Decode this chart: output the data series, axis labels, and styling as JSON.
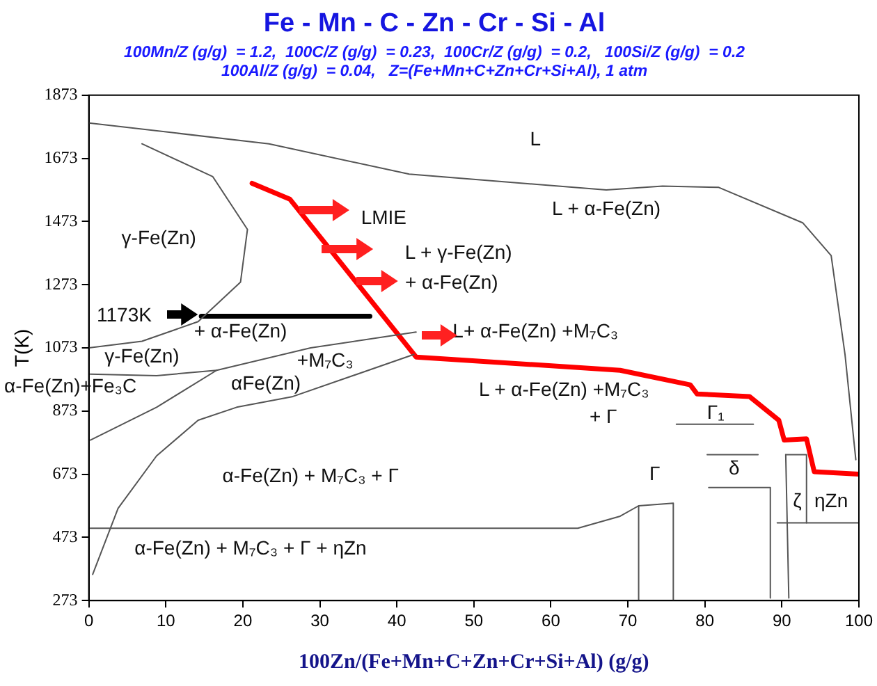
{
  "chart_data": {
    "type": "line",
    "title": "Fe - Mn - C - Zn - Cr - Si - Al",
    "subtitle": "100Mn/Z (g/g)  = 1.2,  100C/Z (g/g)  = 0.23,  100Cr/Z (g/g)  = 0.2,   100Si/Z (g/g)  = 0.2\n100Al/Z (g/g)  = 0.04,   Z=(Fe+Mn+C+Zn+Cr+Si+Al), 1 atm",
    "xlabel": "100Zn/(Fe+Mn+C+Zn+Cr+Si+Al) (g/g)",
    "ylabel": "T(K)",
    "xlim": [
      0,
      100
    ],
    "xticks": [
      0,
      10,
      20,
      30,
      40,
      50,
      60,
      70,
      80,
      90,
      100
    ],
    "ylim": [
      273,
      1873
    ],
    "yticks": [
      273,
      473,
      673,
      873,
      1073,
      1273,
      1473,
      1673,
      1873
    ],
    "grid": false,
    "legend": false,
    "marker": "none",
    "line_style": "solid",
    "series": [
      {
        "color": "#555555",
        "x": [
          0,
          23.4,
          41.6,
          67.2,
          74.5,
          81.8,
          92.7,
          96.4,
          98.2,
          99.6
        ],
        "values": [
          1785,
          1719,
          1623,
          1573,
          1585,
          1581,
          1469,
          1365,
          1052,
          719
        ]
      },
      {
        "color": "#555555",
        "x": [
          6.9,
          16.1,
          20.6,
          19.7,
          14.2,
          6.9,
          0
        ],
        "values": [
          1719,
          1615,
          1448,
          1281,
          1156,
          1094,
          1073
        ]
      },
      {
        "color": "#555555",
        "x": [
          0.5,
          3.8,
          8.8,
          14.2,
          19.2,
          26.5,
          42.2
        ],
        "values": [
          356,
          565,
          731,
          844,
          885,
          919,
          1052
        ]
      },
      {
        "color": "#555555",
        "x": [
          0.2,
          63.5,
          69,
          71.4,
          71.4
        ],
        "values": [
          502,
          502,
          540,
          573,
          273
        ]
      },
      {
        "color": "#555555",
        "x": [
          0.2,
          8.8,
          16.6,
          28.8,
          42.5
        ],
        "values": [
          781,
          885,
          1002,
          1073,
          1123
        ]
      },
      {
        "color": "#555555",
        "x": [
          0.2,
          8.8,
          16.6
        ],
        "values": [
          990,
          985,
          1002
        ]
      },
      {
        "color": "#555555",
        "x": [
          71.4,
          75.9,
          75.9
        ],
        "values": [
          573,
          581,
          273
        ]
      },
      {
        "color": "#555555",
        "x": [
          76.3,
          86.3
        ],
        "values": [
          831,
          831
        ]
      },
      {
        "color": "#555555",
        "x": [
          80.3,
          86.9
        ],
        "values": [
          735,
          735
        ]
      },
      {
        "color": "#555555",
        "x": [
          80.5,
          88.5,
          88.5
        ],
        "values": [
          631,
          631,
          281
        ]
      },
      {
        "color": "#555555",
        "x": [
          90.5,
          93.2,
          93.2
        ],
        "values": [
          735,
          735,
          519
        ]
      },
      {
        "color": "#555555",
        "x": [
          89.4,
          100
        ],
        "values": [
          519,
          519
        ]
      },
      {
        "color": "#555555",
        "x": [
          90.5,
          90.9
        ],
        "values": [
          735,
          281
        ]
      },
      {
        "color": "#000000",
        "x": [
          14.6,
          36.5
        ],
        "values": [
          1173,
          1173
        ]
      },
      {
        "color": "#ff0000",
        "x": [
          21.2,
          26.1,
          42.5,
          69,
          78.1,
          79,
          85.8,
          89.6,
          90.3,
          93.2,
          94.2,
          100
        ],
        "values": [
          1594,
          1544,
          1044,
          1002,
          956,
          927,
          919,
          844,
          781,
          785,
          681,
          673
        ]
      }
    ],
    "annotations": [
      "L",
      "L + α-Fe(Zn)",
      "LMIE",
      "L + γ-Fe(Zn)",
      "+ α-Fe(Zn)",
      "γ-Fe(Zn)",
      "1173K",
      "+ α-Fe(Zn)",
      "γ-Fe(Zn)",
      "L+ α-Fe(Zn) +M₇C₃",
      "+M₇C₃",
      "αFe(Zn)",
      "α-Fe(Zn)+Fe₃C",
      "L + α-Fe(Zn) +M₇C₃",
      "+ Γ",
      "α-Fe(Zn) + M₇C₃ + Γ",
      "α-Fe(Zn) + M₇C₃ + Γ + ηZn",
      "Γ",
      "Γ₁",
      "δ",
      "ζ",
      "ηZn"
    ]
  }
}
